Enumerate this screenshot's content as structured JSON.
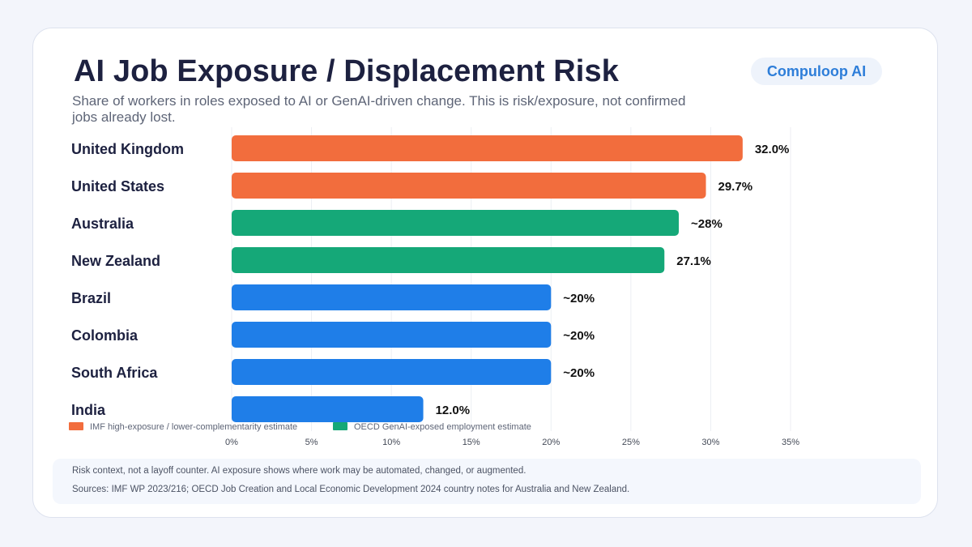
{
  "header": {
    "title": "AI Job Exposure / Displacement Risk",
    "subtitle": "Share of workers in roles exposed to AI or GenAI-driven change. This is risk/exposure, not confirmed jobs already lost.",
    "brand": "Compuloop AI"
  },
  "colors": {
    "imf": "#f26d3d",
    "oecd": "#15a878",
    "other": "#1f7ee8",
    "grid": "#eceef3"
  },
  "chart_data": {
    "type": "bar",
    "orientation": "horizontal",
    "categories": [
      "United Kingdom",
      "United States",
      "Australia",
      "New Zealand",
      "Brazil",
      "Colombia",
      "South Africa",
      "India"
    ],
    "values": [
      32.0,
      29.7,
      28,
      27.1,
      20,
      20,
      20,
      12.0
    ],
    "value_labels": [
      "32.0%",
      "29.7%",
      "~28%",
      "27.1%",
      "~20%",
      "~20%",
      "~20%",
      "12.0%"
    ],
    "groups": [
      "imf",
      "imf",
      "oecd",
      "oecd",
      "other",
      "other",
      "other",
      "other"
    ],
    "xlim": [
      0,
      35
    ],
    "xticks": [
      0,
      5,
      10,
      15,
      20,
      25,
      30,
      35
    ],
    "xtick_labels": [
      "0%",
      "5%",
      "10%",
      "15%",
      "20%",
      "25%",
      "30%",
      "35%"
    ],
    "grid": true,
    "legend": {
      "placement": "bottom-left",
      "entries": [
        {
          "key": "imf",
          "label": "IMF high-exposure / lower-complementarity estimate"
        },
        {
          "key": "oecd",
          "label": "OECD GenAI-exposed employment estimate"
        }
      ]
    }
  },
  "footer": {
    "context": "Risk context, not a layoff counter. AI exposure shows where work may be automated, changed, or augmented.",
    "sources": "Sources: IMF WP 2023/216; OECD Job Creation and Local Economic Development 2024 country notes for Australia and New Zealand."
  }
}
